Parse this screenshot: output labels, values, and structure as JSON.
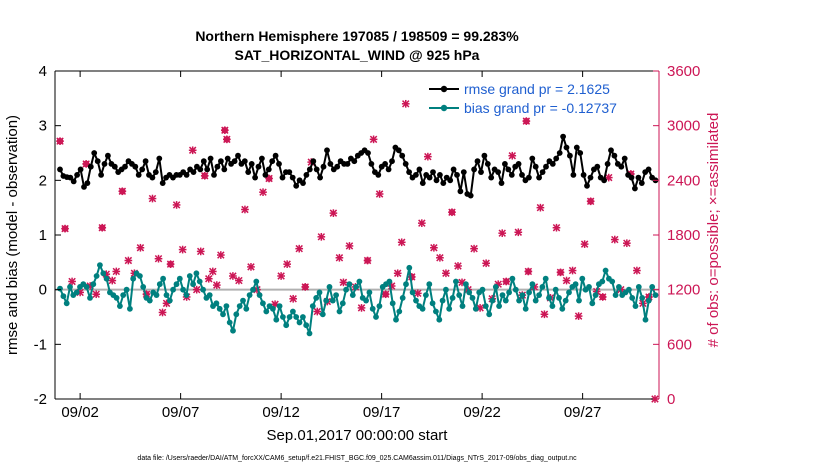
{
  "chart_data": {
    "type": "line",
    "title_line1": "Northern Hemisphere 197085 / 198509 = 99.283%",
    "title_line2": "SAT_HORIZONTAL_WIND @ 925 hPa",
    "xlabel": "Sep.01,2017 00:00:00 start",
    "ylabel_left": "rmse and bias (model - observation)",
    "ylabel_right": "# of obs: o=possible; ×=assimilated",
    "footer": "data file: /Users/raeder/DAI/ATM_forcXX/CAM6_setup/f.e21.FHIST_BGC.f09_025.CAM6assim.011/Diags_NTrS_2017-09/obs_diag_output.nc",
    "xlim": [
      0.75,
      30.8
    ],
    "ylim_left": [
      -2,
      4
    ],
    "ylim_right": [
      0,
      3600
    ],
    "x_ticks": [
      2,
      7,
      12,
      17,
      22,
      27
    ],
    "x_tick_labels": [
      "09/02",
      "09/07",
      "09/12",
      "09/17",
      "09/22",
      "09/27"
    ],
    "y_left_ticks": [
      -2,
      -1,
      0,
      1,
      2,
      3,
      4
    ],
    "y_right_ticks": [
      0,
      600,
      1200,
      1800,
      2400,
      3000,
      3600
    ],
    "colors": {
      "rmse": "#000000",
      "bias": "#00807f",
      "obs": "#cc1655",
      "legend_text": "#1f5fd0",
      "zero_line": "#b0b0b0"
    },
    "series": [
      {
        "name": "rmse",
        "legend": "rmse grand pr = 2.1625",
        "values": [
          2.2,
          2.08,
          2.06,
          2.05,
          1.98,
          2.1,
          2.2,
          1.88,
          1.95,
          2.25,
          2.5,
          2.35,
          2.1,
          2.3,
          2.45,
          2.3,
          2.25,
          2.15,
          2.2,
          2.25,
          2.35,
          2.3,
          2.25,
          2.1,
          2.2,
          2.35,
          2.1,
          2.05,
          2.15,
          2.4,
          1.95,
          2.05,
          2.1,
          2.05,
          2.1,
          2.1,
          2.15,
          2.1,
          2.2,
          2.15,
          2.25,
          2.2,
          2.35,
          2.2,
          2.4,
          2.1,
          2.25,
          2.35,
          2.2,
          2.4,
          2.3,
          2.35,
          2.45,
          2.3,
          2.35,
          2.15,
          2.3,
          2.05,
          2.25,
          2.4,
          2.1,
          2.2,
          2.35,
          2.45,
          2.3,
          2.05,
          2.15,
          2.15,
          2.05,
          1.9,
          2.0,
          1.95,
          2.1,
          2.2,
          2.35,
          2.2,
          2.05,
          2.25,
          2.55,
          2.3,
          2.2,
          2.25,
          2.35,
          2.3,
          2.3,
          2.4,
          2.35,
          2.45,
          2.5,
          2.55,
          2.5,
          2.3,
          2.15,
          2.1,
          2.25,
          2.3,
          2.2,
          2.35,
          2.6,
          2.55,
          2.45,
          2.3,
          2.15,
          2.05,
          2.1,
          2.2,
          1.95,
          2.1,
          2.05,
          2.15,
          2.0,
          2.1,
          1.95,
          2.05,
          2.0,
          2.2,
          2.1,
          1.8,
          2.15,
          1.75,
          1.72,
          2.2,
          2.35,
          2.15,
          2.45,
          2.3,
          2.05,
          2.2,
          2.15,
          1.95,
          2.3,
          2.2,
          2.1,
          2.25,
          2.3,
          2.1,
          2.0,
          2.05,
          2.4,
          2.25,
          2.05,
          2.15,
          2.25,
          2.35,
          2.3,
          2.4,
          2.5,
          2.8,
          2.6,
          2.45,
          2.1,
          2.6,
          2.5,
          2.1,
          1.9,
          2.05,
          2.2,
          2.25,
          2.05,
          2.0,
          2.3,
          2.55,
          2.45,
          2.3,
          2.25,
          2.4,
          2.1,
          2.05,
          1.85,
          2.05,
          1.95,
          2.15,
          2.2,
          2.05,
          2.0
        ]
      },
      {
        "name": "bias",
        "legend": "bias grand pr = -0.12737",
        "values": [
          0.02,
          -0.12,
          -0.25,
          0.05,
          -0.1,
          -0.05,
          0.05,
          0.1,
          0.05,
          -0.15,
          0.1,
          0.25,
          0.45,
          0.3,
          0.2,
          -0.05,
          -0.1,
          -0.15,
          -0.3,
          -0.1,
          0.0,
          -0.35,
          0.2,
          0.3,
          0.25,
          0.05,
          -0.15,
          -0.2,
          -0.05,
          -0.1,
          0.1,
          0.2,
          -0.1,
          -0.2,
          0.0,
          0.1,
          0.2,
          0.0,
          -0.1,
          0.25,
          0.1,
          0.3,
          0.15,
          0.0,
          -0.15,
          -0.1,
          -0.3,
          -0.25,
          -0.35,
          -0.45,
          -0.3,
          -0.6,
          -0.75,
          -0.45,
          -0.3,
          -0.2,
          -0.35,
          -0.1,
          0.0,
          0.15,
          -0.1,
          -0.25,
          -0.4,
          -0.3,
          -0.35,
          -0.55,
          -0.3,
          -0.5,
          -0.65,
          -0.5,
          -0.4,
          -0.5,
          -0.6,
          -0.5,
          -0.65,
          -0.8,
          -0.3,
          -0.15,
          -0.05,
          -0.45,
          -0.2,
          0.05,
          -0.2,
          -0.1,
          -0.4,
          -0.25,
          0.0,
          0.1,
          -0.1,
          0.05,
          0.15,
          -0.15,
          -0.2,
          -0.05,
          -0.35,
          -0.5,
          -0.3,
          0.05,
          0.1,
          0.15,
          -0.25,
          -0.55,
          -0.4,
          -0.15,
          0.1,
          0.4,
          -0.05,
          -0.2,
          -0.3,
          -0.35,
          -0.1,
          0.1,
          -0.25,
          -0.4,
          -0.55,
          -0.2,
          0.0,
          -0.35,
          -0.15,
          0.15,
          -0.1,
          -0.3,
          0.1,
          -0.05,
          -0.15,
          -0.35,
          -0.05,
          0.0,
          -0.3,
          -0.45,
          -0.2,
          0.05,
          -0.3,
          -0.1,
          -0.2,
          -0.05,
          0.2,
          0.0,
          -0.2,
          -0.1,
          -0.35,
          -0.05,
          0.1,
          -0.2,
          -0.1,
          0.05,
          0.2,
          -0.15,
          -0.3,
          0.0,
          -0.15,
          -0.35,
          -0.2,
          -0.05,
          0.05,
          0.1,
          -0.2,
          0.2,
          0.0,
          0.05,
          -0.25,
          -0.1,
          0.1,
          0.15,
          0.35,
          0.2,
          0.15,
          -0.1,
          0.05,
          -0.1,
          -0.05,
          0.0,
          -0.15,
          -0.3,
          0.05,
          -0.15,
          -0.55,
          -0.2,
          0.05,
          -0.1
        ]
      }
    ],
    "obs_possible": [
      [
        1,
        2830
      ],
      [
        1.25,
        1870
      ],
      [
        2.3,
        2580
      ],
      [
        3.1,
        1880
      ],
      [
        4.1,
        2280
      ],
      [
        5.3,
        1150
      ],
      [
        6.5,
        1480
      ],
      [
        8.2,
        2450
      ],
      [
        9.2,
        2950
      ],
      [
        9.3,
        2850
      ],
      [
        11.4,
        2420
      ],
      [
        13.2,
        1230
      ],
      [
        16.3,
        1520
      ],
      [
        17.2,
        1150
      ],
      [
        18.5,
        1340
      ],
      [
        20.5,
        2050
      ],
      [
        23.2,
        1290
      ],
      [
        24.2,
        3050
      ],
      [
        24.3,
        1400
      ],
      [
        25.9,
        1390
      ],
      [
        27.4,
        2170
      ],
      [
        28.0,
        1120
      ],
      [
        29.4,
        2470
      ],
      [
        30.3,
        1120
      ]
    ],
    "obs_assimilated": [
      [
        1,
        2830
      ],
      [
        1.25,
        1870
      ],
      [
        1.6,
        1290
      ],
      [
        2.0,
        1170
      ],
      [
        2.3,
        2580
      ],
      [
        2.5,
        1240
      ],
      [
        2.8,
        1150
      ],
      [
        3.1,
        1880
      ],
      [
        3.3,
        1370
      ],
      [
        3.6,
        1300
      ],
      [
        3.8,
        1400
      ],
      [
        4.1,
        2280
      ],
      [
        4.4,
        1520
      ],
      [
        4.7,
        1380
      ],
      [
        5.0,
        1660
      ],
      [
        5.3,
        1150
      ],
      [
        5.6,
        2200
      ],
      [
        5.9,
        1540
      ],
      [
        6.1,
        950
      ],
      [
        6.3,
        1050
      ],
      [
        6.5,
        1480
      ],
      [
        6.8,
        2130
      ],
      [
        7.1,
        1640
      ],
      [
        7.3,
        1120
      ],
      [
        7.6,
        2730
      ],
      [
        7.8,
        1200
      ],
      [
        8.0,
        1620
      ],
      [
        8.2,
        2450
      ],
      [
        8.4,
        1320
      ],
      [
        8.6,
        1400
      ],
      [
        8.8,
        1250
      ],
      [
        9.0,
        1580
      ],
      [
        9.2,
        2950
      ],
      [
        9.3,
        2850
      ],
      [
        9.6,
        1350
      ],
      [
        9.9,
        1300
      ],
      [
        10.2,
        2080
      ],
      [
        10.5,
        1450
      ],
      [
        10.8,
        1200
      ],
      [
        11.1,
        2270
      ],
      [
        11.4,
        2420
      ],
      [
        11.7,
        1040
      ],
      [
        12.0,
        1350
      ],
      [
        12.3,
        1480
      ],
      [
        12.6,
        1100
      ],
      [
        12.9,
        1650
      ],
      [
        13.2,
        1230
      ],
      [
        13.5,
        2600
      ],
      [
        13.8,
        960
      ],
      [
        14.0,
        1780
      ],
      [
        14.3,
        1070
      ],
      [
        14.6,
        2040
      ],
      [
        14.9,
        1550
      ],
      [
        15.1,
        1280
      ],
      [
        15.4,
        1680
      ],
      [
        15.7,
        1230
      ],
      [
        16.0,
        1000
      ],
      [
        16.3,
        1520
      ],
      [
        16.6,
        2850
      ],
      [
        16.9,
        2250
      ],
      [
        17.2,
        1150
      ],
      [
        17.5,
        1240
      ],
      [
        17.8,
        1380
      ],
      [
        18.0,
        1720
      ],
      [
        18.2,
        3240
      ],
      [
        18.5,
        1340
      ],
      [
        18.8,
        1160
      ],
      [
        19.0,
        1930
      ],
      [
        19.3,
        2660
      ],
      [
        19.6,
        1660
      ],
      [
        19.9,
        1550
      ],
      [
        20.2,
        1380
      ],
      [
        20.5,
        2050
      ],
      [
        20.8,
        1460
      ],
      [
        21.0,
        1280
      ],
      [
        21.3,
        1200
      ],
      [
        21.6,
        1650
      ],
      [
        21.9,
        1000
      ],
      [
        22.2,
        1490
      ],
      [
        22.5,
        1100
      ],
      [
        22.8,
        1260
      ],
      [
        23.0,
        1820
      ],
      [
        23.2,
        1290
      ],
      [
        23.5,
        2670
      ],
      [
        23.8,
        1830
      ],
      [
        24.0,
        1140
      ],
      [
        24.2,
        3050
      ],
      [
        24.3,
        1400
      ],
      [
        24.6,
        1230
      ],
      [
        24.9,
        2100
      ],
      [
        25.1,
        930
      ],
      [
        25.4,
        1110
      ],
      [
        25.7,
        1880
      ],
      [
        25.9,
        1390
      ],
      [
        26.2,
        1300
      ],
      [
        26.5,
        1410
      ],
      [
        26.8,
        910
      ],
      [
        27.1,
        1700
      ],
      [
        27.4,
        2170
      ],
      [
        27.7,
        1180
      ],
      [
        28.0,
        1120
      ],
      [
        28.3,
        2430
      ],
      [
        28.6,
        1750
      ],
      [
        28.9,
        1200
      ],
      [
        29.2,
        1710
      ],
      [
        29.4,
        2470
      ],
      [
        29.7,
        1410
      ],
      [
        30.0,
        1050
      ],
      [
        30.3,
        1120
      ],
      [
        30.6,
        0
      ]
    ]
  }
}
